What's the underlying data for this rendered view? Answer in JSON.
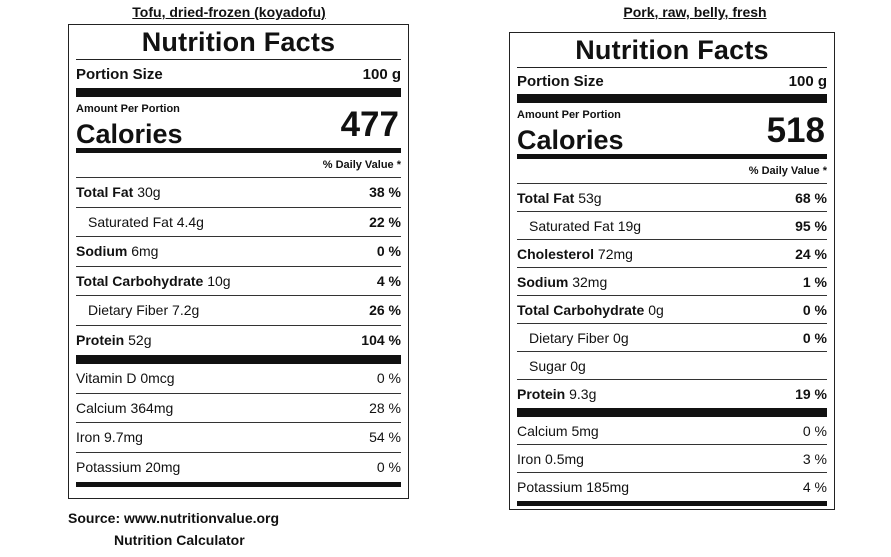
{
  "left": {
    "caption": "Tofu, dried-frozen (koyadofu)",
    "title": "Nutrition Facts",
    "portion_label": "Portion Size",
    "portion_value": "100 g",
    "amount_label": "Amount Per Portion",
    "calories_label": "Calories",
    "calories_value": "477",
    "dv_header": "% Daily Value *",
    "rows": [
      {
        "name": "Total Fat",
        "amount": "30g",
        "pct": "38 %"
      },
      {
        "name": "Saturated Fat",
        "amount": "4.4g",
        "pct": "22 %"
      },
      {
        "name": "Sodium",
        "amount": "6mg",
        "pct": "0 %"
      },
      {
        "name": "Total Carbohydrate",
        "amount": "10g",
        "pct": "4 %"
      },
      {
        "name": "Dietary Fiber",
        "amount": "7.2g",
        "pct": "26 %"
      },
      {
        "name": "Protein",
        "amount": "52g",
        "pct": "104 %"
      }
    ],
    "minerals": [
      {
        "name": "Vitamin D",
        "amount": "0mcg",
        "pct": "0 %"
      },
      {
        "name": "Calcium",
        "amount": "364mg",
        "pct": "28 %"
      },
      {
        "name": "Iron",
        "amount": "9.7mg",
        "pct": "54 %"
      },
      {
        "name": "Potassium",
        "amount": "20mg",
        "pct": "0 %"
      }
    ]
  },
  "right": {
    "caption": "Pork, raw, belly, fresh",
    "title": "Nutrition Facts",
    "portion_label": "Portion Size",
    "portion_value": "100 g",
    "amount_label": "Amount Per Portion",
    "calories_label": "Calories",
    "calories_value": "518",
    "dv_header": "% Daily Value *",
    "rows": [
      {
        "name": "Total Fat",
        "amount": "53g",
        "pct": "68 %"
      },
      {
        "name": "Saturated Fat",
        "amount": "19g",
        "pct": "95 %"
      },
      {
        "name": "Cholesterol",
        "amount": "72mg",
        "pct": "24 %"
      },
      {
        "name": "Sodium",
        "amount": "32mg",
        "pct": "1 %"
      },
      {
        "name": "Total Carbohydrate",
        "amount": "0g",
        "pct": "0 %"
      },
      {
        "name": "Dietary Fiber",
        "amount": "0g",
        "pct": "0 %"
      },
      {
        "name": "Sugar",
        "amount": "0g",
        "pct": ""
      },
      {
        "name": "Protein",
        "amount": "9.3g",
        "pct": "19 %"
      }
    ],
    "minerals": [
      {
        "name": "Calcium",
        "amount": "5mg",
        "pct": "0 %"
      },
      {
        "name": "Iron",
        "amount": "0.5mg",
        "pct": "3 %"
      },
      {
        "name": "Potassium",
        "amount": "185mg",
        "pct": "4 %"
      }
    ]
  },
  "source": {
    "line1": "Source: www.nutritionvalue.org",
    "line2": "Nutrition Calculator"
  }
}
